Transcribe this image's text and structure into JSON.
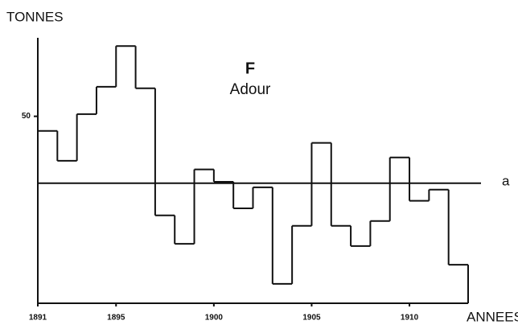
{
  "chart_data": {
    "type": "step",
    "title": "F",
    "subtitle": "Adour",
    "ylabel": "TONNES",
    "xlabel": "ANNEES",
    "x": [
      1891,
      1892,
      1893,
      1894,
      1895,
      1896,
      1897,
      1898,
      1899,
      1900,
      1901,
      1902,
      1903,
      1904,
      1905,
      1906,
      1907,
      1908,
      1909,
      1910,
      1911,
      1912
    ],
    "series": [
      {
        "name": "Adour",
        "color": "#111111",
        "values": [
          46.1,
          38.1,
          50.6,
          57.9,
          68.8,
          57.5,
          23.5,
          15.9,
          35.8,
          32.5,
          25.4,
          31.0,
          5.2,
          20.7,
          42.9,
          20.7,
          15.3,
          22.0,
          39.0,
          27.4,
          30.4,
          10.3
        ]
      }
    ],
    "reference_line": {
      "value": 32.1,
      "label": "a"
    },
    "xlim": [
      1891,
      1913
    ],
    "xticks": [
      1891,
      1895,
      1900,
      1905,
      1910
    ],
    "ylim": [
      0,
      71
    ],
    "yticks": [
      50
    ]
  }
}
